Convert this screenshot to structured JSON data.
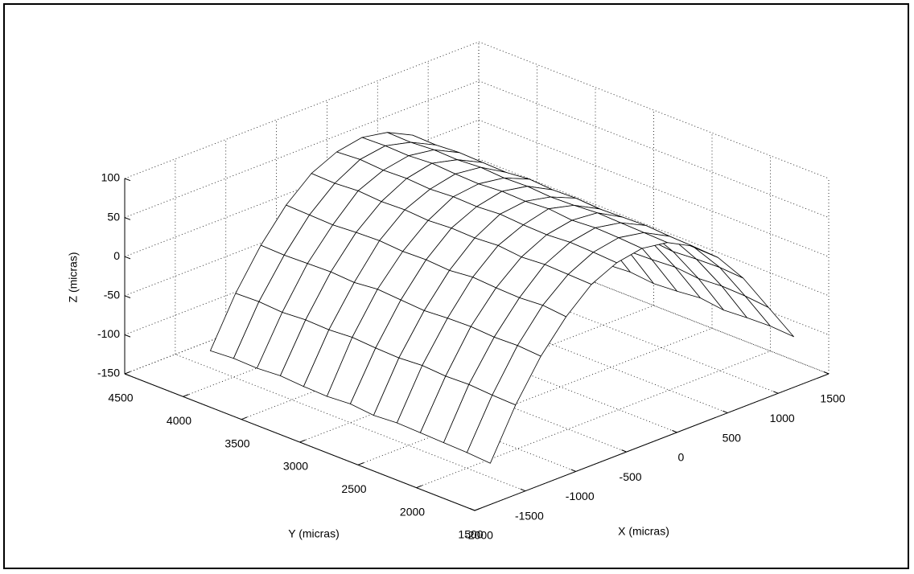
{
  "chart_data": {
    "type": "surface",
    "xlabel": "X (micras)",
    "ylabel": "Y (micras)",
    "zlabel": "Z (micras)",
    "x": [
      -1500,
      -1250,
      -1000,
      -750,
      -500,
      -250,
      0,
      250,
      500,
      750,
      1000,
      1250,
      1500
    ],
    "y": [
      1800,
      2000,
      2200,
      2400,
      2600,
      2800,
      3000,
      3200,
      3400,
      3600,
      3800,
      4000,
      4200
    ],
    "z": [
      [
        -132,
        -70,
        -20,
        18,
        47,
        62,
        68,
        63,
        46,
        19,
        -20,
        -70,
        -120
      ],
      [
        -130,
        -69,
        -18,
        21,
        48,
        64,
        70,
        64,
        47,
        20,
        -18,
        -67,
        -118
      ],
      [
        -129,
        -67,
        -19,
        19,
        49,
        65,
        71,
        65,
        49,
        21,
        -19,
        -66,
        -119
      ],
      [
        -128,
        -68,
        -17,
        20,
        47,
        63,
        69,
        66,
        48,
        18,
        -21,
        -68,
        -121
      ],
      [
        -127,
        -66,
        -18,
        22,
        50,
        64,
        72,
        64,
        47,
        20,
        -18,
        -65,
        -117
      ],
      [
        -129,
        -68,
        -20,
        19,
        48,
        66,
        70,
        63,
        49,
        22,
        -17,
        -67,
        -120
      ],
      [
        -126,
        -67,
        -18,
        21,
        49,
        64,
        71,
        65,
        48,
        19,
        -20,
        -68,
        -122
      ],
      [
        -128,
        -65,
        -16,
        20,
        47,
        65,
        69,
        64,
        50,
        21,
        -18,
        -66,
        -119
      ],
      [
        -127,
        -67,
        -19,
        22,
        49,
        63,
        70,
        66,
        47,
        20,
        -19,
        -69,
        -121
      ],
      [
        -125,
        -66,
        -17,
        21,
        48,
        65,
        72,
        64,
        48,
        18,
        -21,
        -67,
        -123
      ],
      [
        -127,
        -68,
        -18,
        19,
        50,
        64,
        70,
        65,
        49,
        20,
        -18,
        -68,
        -120
      ],
      [
        -126,
        -66,
        -19,
        20,
        48,
        66,
        71,
        63,
        47,
        21,
        -20,
        -66,
        -122
      ],
      [
        -128,
        -67,
        -18,
        21,
        49,
        64,
        70,
        64,
        48,
        19,
        -19,
        -68,
        -121
      ]
    ],
    "xlim": [
      -2000,
      1500
    ],
    "ylim": [
      1500,
      4500
    ],
    "zlim": [
      -150,
      100
    ],
    "xticks": [
      -2000,
      -1500,
      -1000,
      -500,
      0,
      500,
      1000,
      1500
    ],
    "yticks": [
      1500,
      2000,
      2500,
      3000,
      3500,
      4000,
      4500
    ],
    "zticks": [
      -150,
      -100,
      -50,
      0,
      50,
      100
    ],
    "grid": true,
    "color": "#000000"
  }
}
